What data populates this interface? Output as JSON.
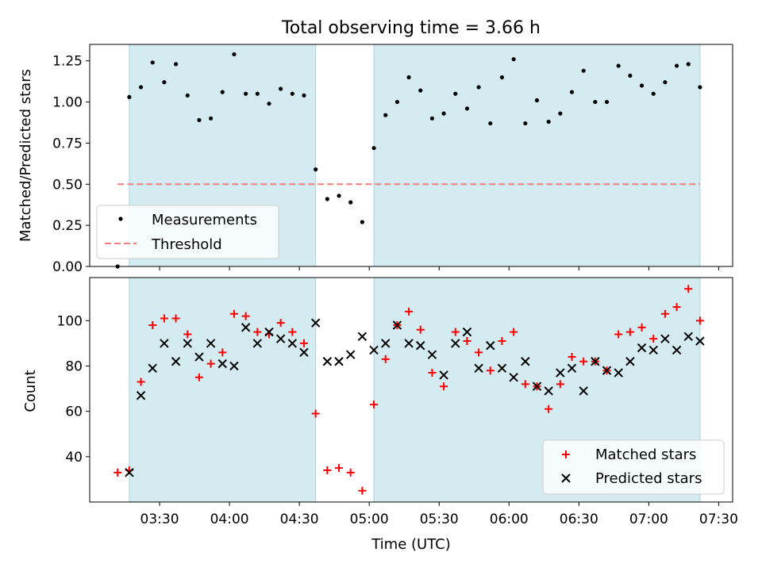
{
  "chart_data": {
    "type": "scatter",
    "title": "Total observing time = 3.66 h",
    "xlabel": "Time (UTC)",
    "x_ticks": [
      "03:30",
      "04:00",
      "04:30",
      "05:00",
      "05:30",
      "06:00",
      "06:30",
      "07:00",
      "07:30"
    ],
    "x_tick_minutes": [
      210,
      240,
      270,
      300,
      330,
      360,
      390,
      420,
      450
    ],
    "xlim_minutes": [
      180,
      456
    ],
    "shaded_intervals_minutes": [
      [
        197,
        277
      ],
      [
        302,
        442
      ]
    ],
    "shade_color": "#d3ebf1",
    "panels": [
      {
        "ylabel": "Matched/Predicted stars",
        "ylim": [
          0,
          1.35
        ],
        "y_ticks": [
          "0.00",
          "0.25",
          "0.50",
          "0.75",
          "1.00",
          "1.25"
        ],
        "y_tick_values": [
          0,
          0.25,
          0.5,
          0.75,
          1.0,
          1.25
        ],
        "threshold": {
          "name": "Threshold",
          "value": 0.5,
          "x_range_minutes": [
            192,
            442
          ],
          "color": "#f08080"
        },
        "legend": {
          "placement": "lower-left",
          "entries": [
            "Measurements",
            "Threshold"
          ]
        },
        "series": [
          {
            "name": "Measurements",
            "marker": "dot",
            "color": "#000000",
            "x_minutes": [
              192,
              197,
              202,
              207,
              212,
              217,
              222,
              227,
              232,
              237,
              242,
              247,
              252,
              257,
              262,
              267,
              272,
              277,
              282,
              287,
              292,
              297,
              302,
              307,
              312,
              317,
              322,
              327,
              332,
              337,
              342,
              347,
              352,
              357,
              362,
              367,
              372,
              377,
              382,
              387,
              392,
              397,
              402,
              407,
              412,
              417,
              422,
              427,
              432,
              437,
              442
            ],
            "y": [
              0.0,
              1.03,
              1.09,
              1.24,
              1.12,
              1.23,
              1.04,
              0.89,
              0.9,
              1.06,
              1.29,
              1.05,
              1.05,
              0.99,
              1.08,
              1.05,
              1.04,
              0.59,
              0.41,
              0.43,
              0.39,
              0.27,
              0.72,
              0.92,
              1.0,
              1.15,
              1.07,
              0.9,
              0.93,
              1.05,
              0.96,
              1.09,
              0.87,
              1.15,
              1.26,
              0.87,
              1.01,
              0.88,
              0.93,
              1.06,
              1.19,
              1.0,
              1.0,
              1.22,
              1.16,
              1.1,
              1.05,
              1.12,
              1.22,
              1.23,
              1.09
            ]
          }
        ]
      },
      {
        "ylabel": "Count",
        "ylim": [
          20,
          119
        ],
        "y_ticks": [
          "40",
          "60",
          "80",
          "100"
        ],
        "y_tick_values": [
          40,
          60,
          80,
          100
        ],
        "legend": {
          "placement": "lower-right",
          "entries": [
            "Matched stars",
            "Predicted stars"
          ]
        },
        "series": [
          {
            "name": "Matched stars",
            "marker": "plus",
            "color": "#ff0000",
            "x_minutes": [
              192,
              197,
              202,
              207,
              212,
              217,
              222,
              227,
              232,
              237,
              242,
              247,
              252,
              257,
              262,
              267,
              272,
              277,
              282,
              287,
              292,
              297,
              302,
              307,
              312,
              317,
              322,
              327,
              332,
              337,
              342,
              347,
              352,
              357,
              362,
              367,
              372,
              377,
              382,
              387,
              392,
              397,
              402,
              407,
              412,
              417,
              422,
              427,
              432,
              437,
              442
            ],
            "y": [
              33,
              34,
              73,
              98,
              101,
              101,
              94,
              75,
              81,
              86,
              103,
              102,
              95,
              94,
              99,
              95,
              90,
              59,
              34,
              35,
              33,
              25,
              63,
              83,
              98,
              104,
              96,
              77,
              71,
              95,
              91,
              86,
              78,
              91,
              95,
              72,
              71,
              61,
              72,
              84,
              82,
              82,
              78,
              94,
              95,
              97,
              92,
              103,
              106,
              114,
              100
            ]
          },
          {
            "name": "Predicted stars",
            "marker": "x",
            "color": "#000000",
            "x_minutes": [
              197,
              202,
              207,
              212,
              217,
              222,
              227,
              232,
              237,
              242,
              247,
              252,
              257,
              262,
              267,
              272,
              277,
              282,
              287,
              292,
              297,
              302,
              307,
              312,
              317,
              322,
              327,
              332,
              337,
              342,
              347,
              352,
              357,
              362,
              367,
              372,
              377,
              382,
              387,
              392,
              397,
              402,
              407,
              412,
              417,
              422,
              427,
              432,
              437,
              442
            ],
            "y": [
              33,
              67,
              79,
              90,
              82,
              90,
              84,
              90,
              81,
              80,
              97,
              90,
              95,
              92,
              90,
              86,
              99,
              82,
              82,
              85,
              93,
              87,
              90,
              98,
              90,
              89,
              85,
              76,
              90,
              95,
              79,
              89,
              79,
              75,
              82,
              71,
              69,
              77,
              79,
              69,
              82,
              78,
              77,
              82,
              88,
              87,
              92,
              87,
              93,
              91
            ]
          }
        ]
      }
    ]
  }
}
